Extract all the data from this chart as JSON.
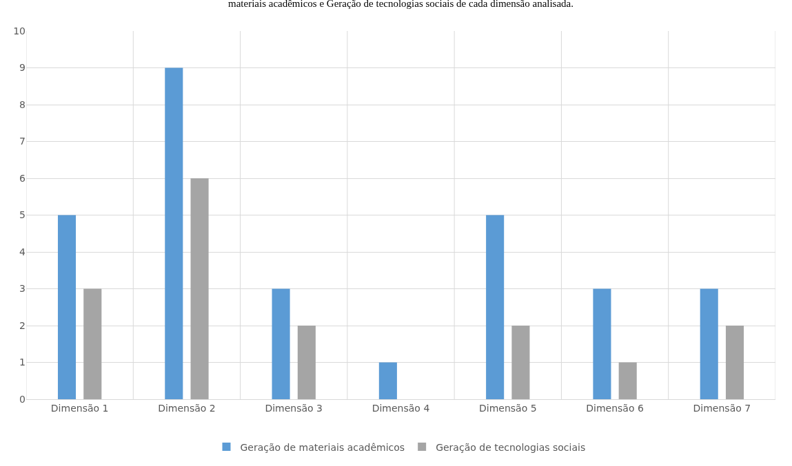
{
  "chart_data": {
    "type": "bar",
    "annotations": [
      "materiais acadêmicos e Geração de tecnologias sociais de cada dimensão analisada."
    ],
    "categories": [
      "Dimensão 1",
      "Dimensão 2",
      "Dimensão 3",
      "Dimensão 4",
      "Dimensão 5",
      "Dimensão 6",
      "Dimensão 7"
    ],
    "series": [
      {
        "name": "Geração de materiais acadêmicos",
        "color": "#5b9bd5",
        "values": [
          5,
          9,
          3,
          1,
          5,
          3,
          3
        ]
      },
      {
        "name": "Geração de tecnologias sociais",
        "color": "#a5a5a5",
        "values": [
          3,
          6,
          2,
          0,
          2,
          1,
          2
        ]
      }
    ],
    "ylim": [
      0,
      10
    ],
    "yticks": [
      0,
      1,
      2,
      3,
      4,
      5,
      6,
      7,
      8,
      9,
      10
    ],
    "grid": true,
    "legend": "bottom"
  }
}
